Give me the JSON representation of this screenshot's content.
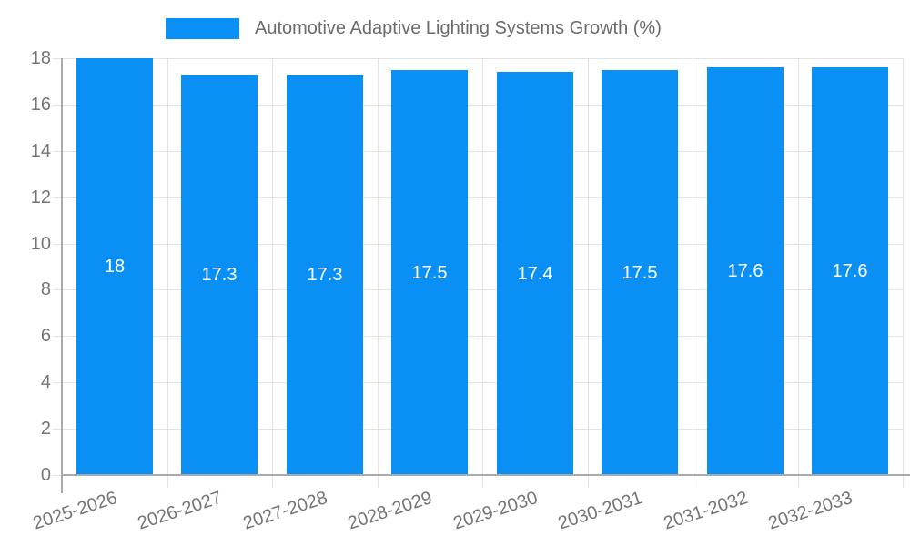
{
  "chart_data": {
    "type": "bar",
    "title": "Automotive Adaptive Lighting Systems Growth (%)",
    "categories": [
      "2025-2026",
      "2026-2027",
      "2027-2028",
      "2028-2029",
      "2029-2030",
      "2030-2031",
      "2031-2032",
      "2032-2033"
    ],
    "values": [
      18,
      17.3,
      17.3,
      17.5,
      17.4,
      17.5,
      17.6,
      17.6
    ],
    "value_labels": [
      "18",
      "17.3",
      "17.3",
      "17.5",
      "17.4",
      "17.5",
      "17.6",
      "17.6"
    ],
    "xlabel": "",
    "ylabel": "",
    "ylim": [
      0,
      18
    ],
    "ytick_labels": [
      "0",
      "2",
      "4",
      "6",
      "8",
      "10",
      "12",
      "14",
      "16",
      "18"
    ],
    "grid": "on",
    "legend_position": "top",
    "x_label_rotation_deg": -18,
    "colors": {
      "bar": "#0a90f5",
      "gridline": "#e3e3e3",
      "axis": "#aaaaaa",
      "tick_text": "#757575",
      "title_text": "#6b6b6b",
      "bar_label_text": "#ffffff"
    }
  }
}
